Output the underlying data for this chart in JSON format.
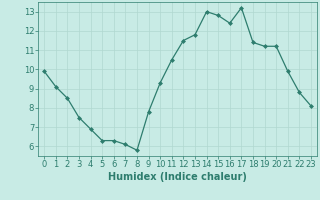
{
  "x": [
    0,
    1,
    2,
    3,
    4,
    5,
    6,
    7,
    8,
    9,
    10,
    11,
    12,
    13,
    14,
    15,
    16,
    17,
    18,
    19,
    20,
    21,
    22,
    23
  ],
  "y": [
    9.9,
    9.1,
    8.5,
    7.5,
    6.9,
    6.3,
    6.3,
    6.1,
    5.8,
    7.8,
    9.3,
    10.5,
    11.5,
    11.8,
    13.0,
    12.8,
    12.4,
    13.2,
    11.4,
    11.2,
    11.2,
    9.9,
    8.8,
    8.1
  ],
  "line_color": "#2e7d6e",
  "marker_color": "#2e7d6e",
  "bg_color": "#c8ebe5",
  "grid_color": "#b0d8d0",
  "xlabel": "Humidex (Indice chaleur)",
  "xlim": [
    -0.5,
    23.5
  ],
  "ylim": [
    5.5,
    13.5
  ],
  "yticks": [
    6,
    7,
    8,
    9,
    10,
    11,
    12,
    13
  ],
  "xticks": [
    0,
    1,
    2,
    3,
    4,
    5,
    6,
    7,
    8,
    9,
    10,
    11,
    12,
    13,
    14,
    15,
    16,
    17,
    18,
    19,
    20,
    21,
    22,
    23
  ],
  "tick_fontsize": 6,
  "label_fontsize": 7
}
